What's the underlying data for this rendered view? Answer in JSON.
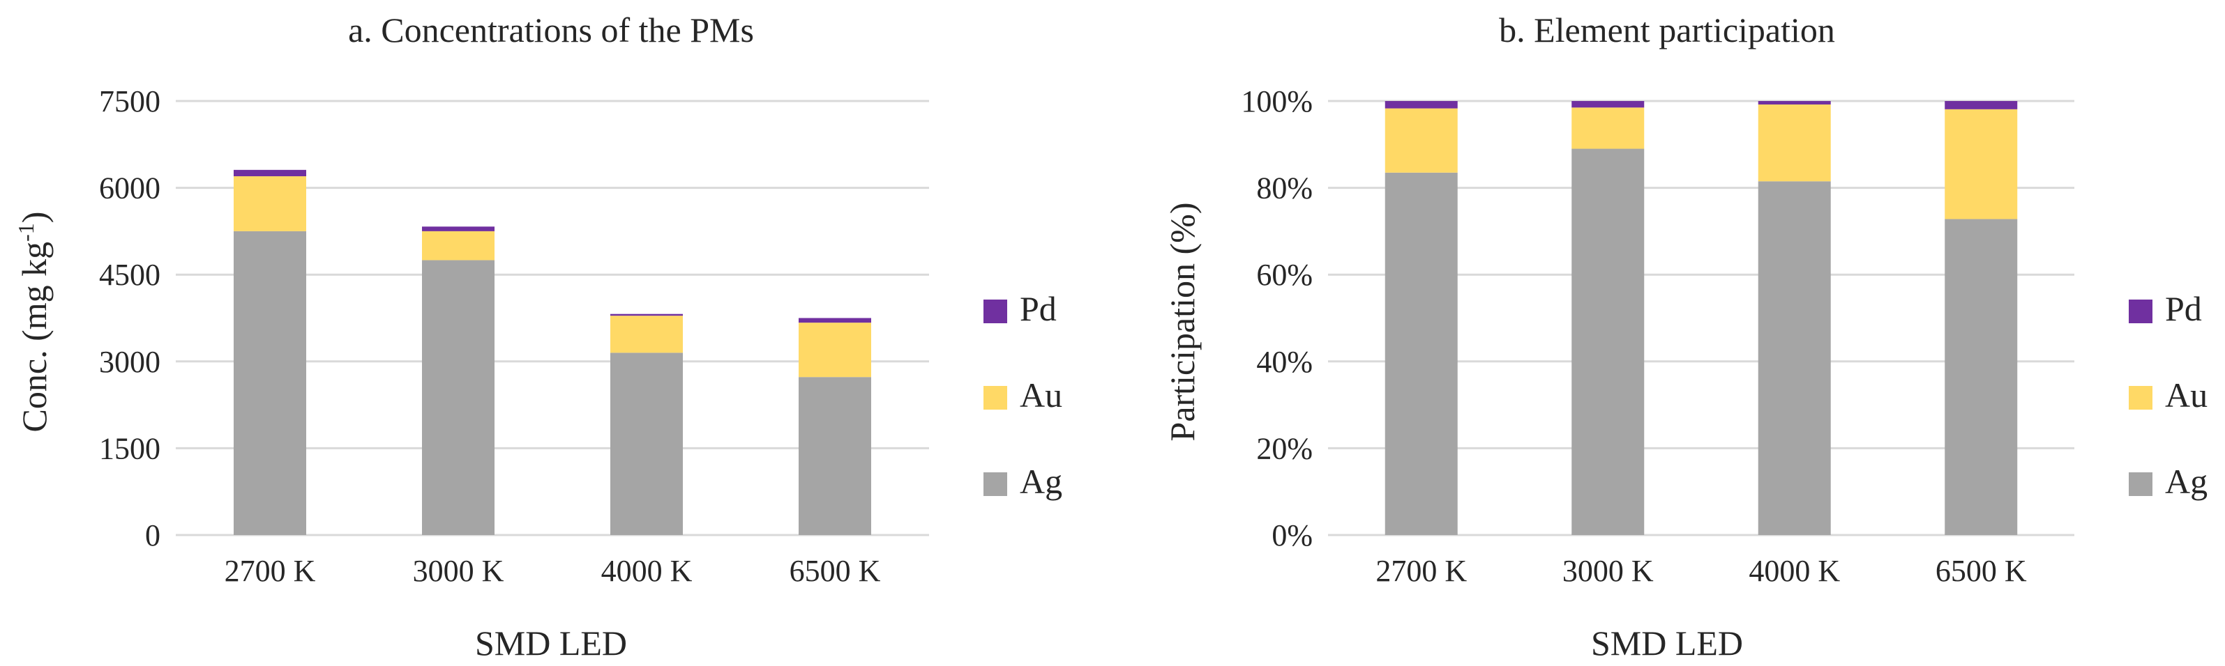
{
  "chart_data": [
    {
      "type": "bar",
      "stacked": true,
      "title": "a. Concentrations of the PMs",
      "xlabel": "SMD LED",
      "ylabel": "Conc. (mg kg",
      "ylabel_sup": "-1",
      "ylabel_close": ")",
      "categories": [
        "2700 K",
        "3000 K",
        "4000 K",
        "6500 K"
      ],
      "ylim": [
        0,
        7500
      ],
      "yticks": [
        0,
        1500,
        3000,
        4500,
        6000,
        7500
      ],
      "ytick_labels": [
        "0",
        "1500",
        "3000",
        "4500",
        "6000",
        "7500"
      ],
      "grid": true,
      "legend_position": "right",
      "series": [
        {
          "name": "Ag",
          "color": "#a5a5a5",
          "values": [
            5250,
            4750,
            3150,
            2730
          ]
        },
        {
          "name": "Au",
          "color": "#ffd966",
          "values": [
            950,
            500,
            640,
            940
          ]
        },
        {
          "name": "Pd",
          "color": "#7030a0",
          "values": [
            110,
            80,
            30,
            80
          ]
        }
      ]
    },
    {
      "type": "bar",
      "stacked": true,
      "title": "b. Element participation",
      "xlabel": "SMD LED",
      "ylabel": "Participation (%)",
      "categories": [
        "2700 K",
        "3000 K",
        "4000 K",
        "6500 K"
      ],
      "ylim": [
        0,
        100
      ],
      "yticks": [
        0,
        20,
        40,
        60,
        80,
        100
      ],
      "ytick_labels": [
        "0%",
        "20%",
        "40%",
        "60%",
        "80%",
        "100%"
      ],
      "grid": true,
      "legend_position": "right",
      "series": [
        {
          "name": "Ag",
          "color": "#a5a5a5",
          "values": [
            83.5,
            89,
            81.5,
            72.8
          ]
        },
        {
          "name": "Au",
          "color": "#ffd966",
          "values": [
            14.8,
            9.5,
            17.7,
            25.3
          ]
        },
        {
          "name": "Pd",
          "color": "#7030a0",
          "values": [
            1.7,
            1.5,
            0.8,
            1.9
          ]
        }
      ]
    }
  ]
}
